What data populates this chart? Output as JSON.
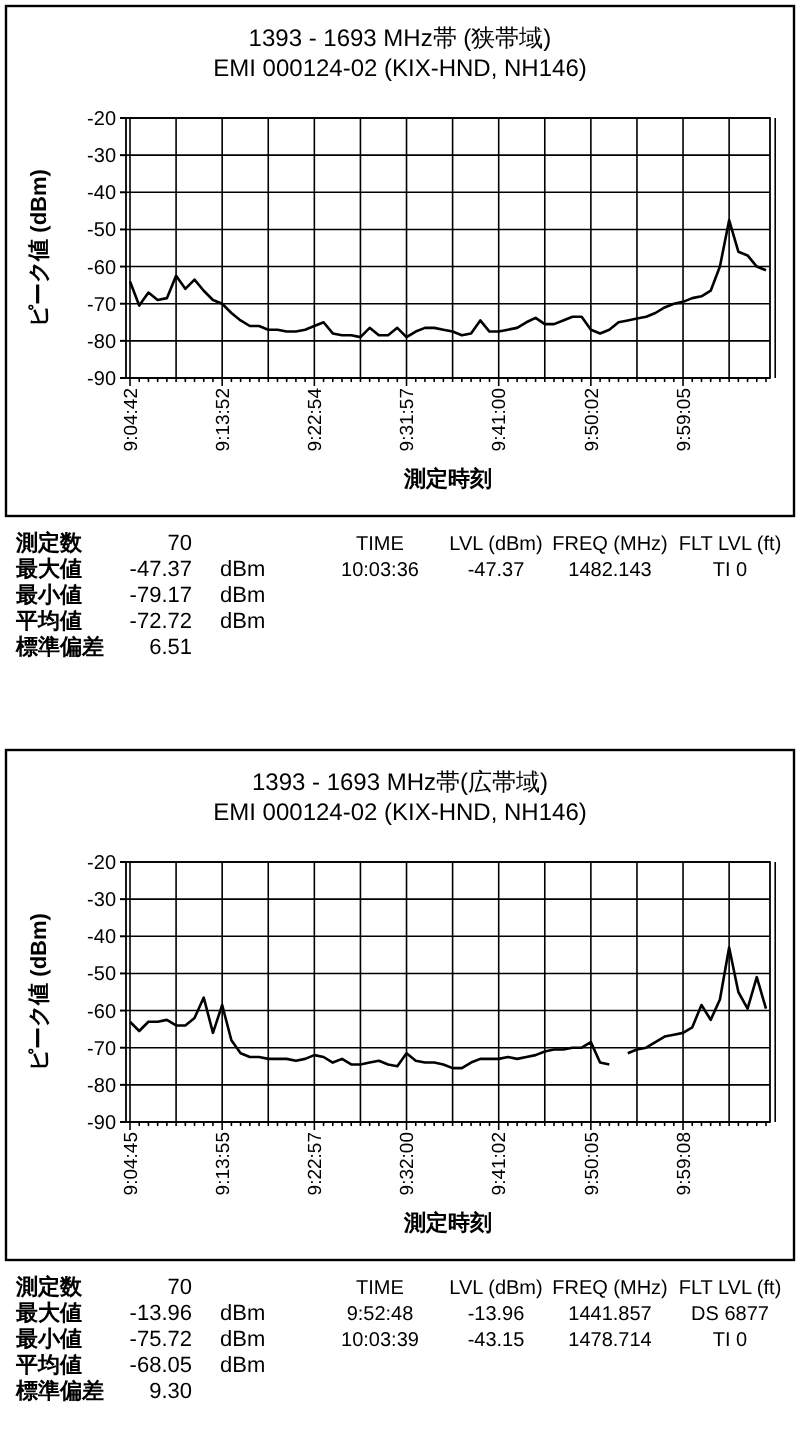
{
  "chart_data": [
    {
      "type": "line",
      "title": "1393 - 1693 MHz帯 (狭帯域)",
      "subtitle": "EMI 000124-02 (KIX-HND, NH146)",
      "xlabel": "測定時刻",
      "ylabel": "ピーク値 (dBm)",
      "categories": [
        "9:04:42",
        null,
        null,
        null,
        null,
        null,
        null,
        null,
        null,
        null,
        "9:13:52",
        null,
        null,
        null,
        null,
        null,
        null,
        null,
        null,
        null,
        "9:22:54",
        null,
        null,
        null,
        null,
        null,
        null,
        null,
        null,
        null,
        "9:31:57",
        null,
        null,
        null,
        null,
        null,
        null,
        null,
        null,
        null,
        "9:41:00",
        null,
        null,
        null,
        null,
        null,
        null,
        null,
        null,
        null,
        "9:50:02",
        null,
        null,
        null,
        null,
        null,
        null,
        null,
        null,
        null,
        "9:59:05",
        null,
        null,
        null,
        null,
        null,
        null,
        null,
        null,
        null
      ],
      "series": [
        {
          "color": "#000000",
          "values": [
            -64,
            -70.5,
            -67,
            -69,
            -68.5,
            -62.5,
            -66,
            -63.5,
            -66.5,
            -69,
            -70,
            -72.5,
            -74.5,
            -76,
            -76,
            -77,
            -77,
            -77.5,
            -77.5,
            -77,
            -76,
            -75,
            -78,
            -78.5,
            -78.5,
            -79,
            -76.5,
            -78.5,
            -78.5,
            -76.5,
            -79,
            -77.5,
            -76.5,
            -76.5,
            -77,
            -77.5,
            -78.5,
            -78,
            -74.5,
            -77.5,
            -77.5,
            -77,
            -76.5,
            -75,
            -73.8,
            -75.5,
            -75.5,
            -74.5,
            -73.5,
            -73.5,
            -77,
            -78,
            -77,
            -75,
            -74.5,
            -74,
            -73.5,
            -72.5,
            -71,
            -70,
            -69.5,
            -68.5,
            -68,
            -66.5,
            -60,
            -47.5,
            -56,
            -57,
            -60,
            -61
          ]
        }
      ],
      "ylim": [
        -90,
        -20
      ],
      "yticks": [
        -90,
        -80,
        -70,
        -60,
        -50,
        -40,
        -30,
        -20
      ],
      "grid": true,
      "marker": "none",
      "line_style": "solid",
      "annotations": [
        "測定数",
        "70",
        "最大値",
        "-47.37",
        "dBm",
        "最小値",
        "-79.17",
        "dBm",
        "平均値",
        "-72.72",
        "dBm",
        "標準偏差",
        "6.51",
        "TIME",
        "LVL (dBm)",
        "FREQ (MHz)",
        "FLT LVL (ft)",
        "10:03:36",
        "-47.37",
        "1482.143",
        "TI  0"
      ]
    },
    {
      "type": "line",
      "title": "1393 - 1693 MHz帯(広帯域)",
      "subtitle": "EMI 000124-02 (KIX-HND, NH146)",
      "xlabel": "測定時刻",
      "ylabel": "ピーク値 (dBm)",
      "categories": [
        "9:04:45",
        null,
        null,
        null,
        null,
        null,
        null,
        null,
        null,
        null,
        "9:13:55",
        null,
        null,
        null,
        null,
        null,
        null,
        null,
        null,
        null,
        "9:22:57",
        null,
        null,
        null,
        null,
        null,
        null,
        null,
        null,
        null,
        "9:32:00",
        null,
        null,
        null,
        null,
        null,
        null,
        null,
        null,
        null,
        "9:41:02",
        null,
        null,
        null,
        null,
        null,
        null,
        null,
        null,
        null,
        "9:50:05",
        null,
        null,
        null,
        null,
        null,
        null,
        null,
        null,
        null,
        "9:59:08",
        null,
        null,
        null,
        null,
        null,
        null,
        null,
        null,
        null
      ],
      "series": [
        {
          "color": "#000000",
          "values": [
            -63,
            -65.5,
            -63,
            -63,
            -62.5,
            -64,
            -64,
            -62,
            -56.5,
            -66,
            -58.5,
            -68,
            -71.5,
            -72.5,
            -72.5,
            -73,
            -73,
            -73,
            -73.5,
            -73,
            -72,
            -72.5,
            -74,
            -73,
            -74.5,
            -74.5,
            -74,
            -73.5,
            -74.5,
            -75,
            -71.5,
            -73.5,
            -74,
            -74,
            -74.5,
            -75.5,
            -75.5,
            -74,
            -73,
            -73,
            -73,
            -72.5,
            -73,
            -72.5,
            -72,
            -71,
            -70.5,
            -70.5,
            -70,
            -70,
            -68.5,
            -74,
            -74.5,
            null,
            -71.5,
            -70.5,
            -70,
            -68.5,
            -67,
            -66.5,
            -66,
            -64.5,
            -58.5,
            -62.5,
            -57,
            -43,
            -55,
            -59.5,
            -51,
            -59.5
          ]
        }
      ],
      "ylim": [
        -90,
        -20
      ],
      "yticks": [
        -90,
        -80,
        -70,
        -60,
        -50,
        -40,
        -30,
        -20
      ],
      "grid": true,
      "marker": "none",
      "line_style": "solid",
      "annotations": [
        "測定数",
        "70",
        "最大値",
        "-13.96",
        "dBm",
        "最小値",
        "-75.72",
        "dBm",
        "平均値",
        "-68.05",
        "dBm",
        "標準偏差",
        "9.30",
        "TIME",
        "LVL (dBm)",
        "FREQ (MHz)",
        "FLT LVL (ft)",
        "9:52:48",
        "-13.96",
        "1441.857",
        "DS 6877",
        "10:03:39",
        "-43.15",
        "1478.714",
        "TI  0"
      ]
    }
  ]
}
